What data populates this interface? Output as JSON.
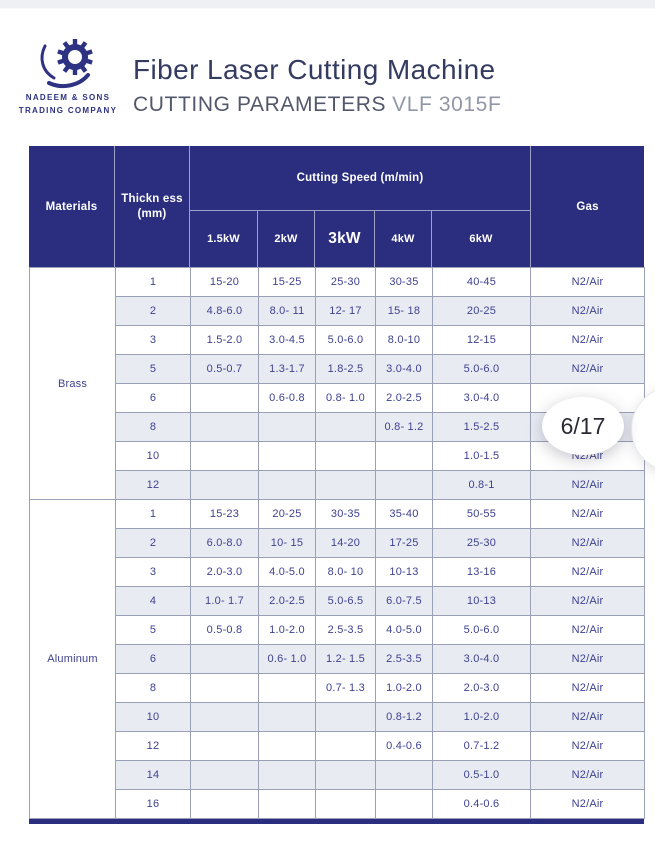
{
  "viewer": {
    "page_indicator": "6/17"
  },
  "brand": {
    "name_line1": "NADEEM & SONS",
    "name_line2": "TRADING COMPANY"
  },
  "header": {
    "title": "Fiber Laser Cutting Machine",
    "subtitle": "CUTTING PARAMETERS",
    "model": "VLF 3015F"
  },
  "table": {
    "headers": {
      "materials": "Materials",
      "thickness_line1": "Thickn ess",
      "thickness_line2": "(mm)",
      "speed_group": "Cutting Speed (m/min)",
      "power_columns": [
        "1.5kW",
        "2kW",
        "3kW",
        "4kW",
        "6kW"
      ],
      "gas": "Gas"
    },
    "groups": [
      {
        "material": "Brass",
        "rows": [
          {
            "thickness": "1",
            "speeds": [
              "15-20",
              "15-25",
              "25-30",
              "30-35",
              "40-45"
            ],
            "gas": "N2/Air"
          },
          {
            "thickness": "2",
            "speeds": [
              "4.8-6.0",
              "8.0- 11",
              "12- 17",
              "15- 18",
              "20-25"
            ],
            "gas": "N2/Air"
          },
          {
            "thickness": "3",
            "speeds": [
              "1.5-2.0",
              "3.0-4.5",
              "5.0-6.0",
              "8.0-10",
              "12-15"
            ],
            "gas": "N2/Air"
          },
          {
            "thickness": "5",
            "speeds": [
              "0.5-0.7",
              "1.3-1.7",
              "1.8-2.5",
              "3.0-4.0",
              "5.0-6.0"
            ],
            "gas": "N2/Air"
          },
          {
            "thickness": "6",
            "speeds": [
              "",
              "0.6-0.8",
              "0.8- 1.0",
              "2.0-2.5",
              "3.0-4.0"
            ],
            "gas": ""
          },
          {
            "thickness": "8",
            "speeds": [
              "",
              "",
              "",
              "0.8- 1.2",
              "1.5-2.5"
            ],
            "gas": ""
          },
          {
            "thickness": "10",
            "speeds": [
              "",
              "",
              "",
              "",
              "1.0-1.5"
            ],
            "gas": "N2/Air"
          },
          {
            "thickness": "12",
            "speeds": [
              "",
              "",
              "",
              "",
              "0.8-1"
            ],
            "gas": "N2/Air"
          }
        ]
      },
      {
        "material": "Aluminum",
        "rows": [
          {
            "thickness": "1",
            "speeds": [
              "15-23",
              "20-25",
              "30-35",
              "35-40",
              "50-55"
            ],
            "gas": "N2/Air"
          },
          {
            "thickness": "2",
            "speeds": [
              "6.0-8.0",
              "10- 15",
              "14-20",
              "17-25",
              "25-30"
            ],
            "gas": "N2/Air"
          },
          {
            "thickness": "3",
            "speeds": [
              "2.0-3.0",
              "4.0-5.0",
              "8.0- 10",
              "10-13",
              "13-16"
            ],
            "gas": "N2/Air"
          },
          {
            "thickness": "4",
            "speeds": [
              "1.0- 1.7",
              "2.0-2.5",
              "5.0-6.5",
              "6.0-7.5",
              "10-13"
            ],
            "gas": "N2/Air"
          },
          {
            "thickness": "5",
            "speeds": [
              "0.5-0.8",
              "1.0-2.0",
              "2.5-3.5",
              "4.0-5.0",
              "5.0-6.0"
            ],
            "gas": "N2/Air"
          },
          {
            "thickness": "6",
            "speeds": [
              "",
              "0.6- 1.0",
              "1.2- 1.5",
              "2.5-3.5",
              "3.0-4.0"
            ],
            "gas": "N2/Air"
          },
          {
            "thickness": "8",
            "speeds": [
              "",
              "",
              "0.7- 1.3",
              "1.0-2.0",
              "2.0-3.0"
            ],
            "gas": "N2/Air"
          },
          {
            "thickness": "10",
            "speeds": [
              "",
              "",
              "",
              "0.8-1.2",
              "1.0-2.0"
            ],
            "gas": "N2/Air"
          },
          {
            "thickness": "12",
            "speeds": [
              "",
              "",
              "",
              "0.4-0.6",
              "0.7-1.2"
            ],
            "gas": "N2/Air"
          },
          {
            "thickness": "14",
            "speeds": [
              "",
              "",
              "",
              "",
              "0.5-1.0"
            ],
            "gas": "N2/Air"
          },
          {
            "thickness": "16",
            "speeds": [
              "",
              "",
              "",
              "",
              "0.4-0.6"
            ],
            "gas": "N2/Air"
          }
        ]
      }
    ]
  },
  "colors": {
    "header_bg": "#2b2e7f",
    "row_alt_bg": "#e9ebf3",
    "cell_text": "#3e4290",
    "grid_border": "#9aa0b5",
    "title_text": "#343b60",
    "subtitle_text": "#53576b",
    "model_text": "#9297a8",
    "logo_navy": "#2d3282"
  }
}
